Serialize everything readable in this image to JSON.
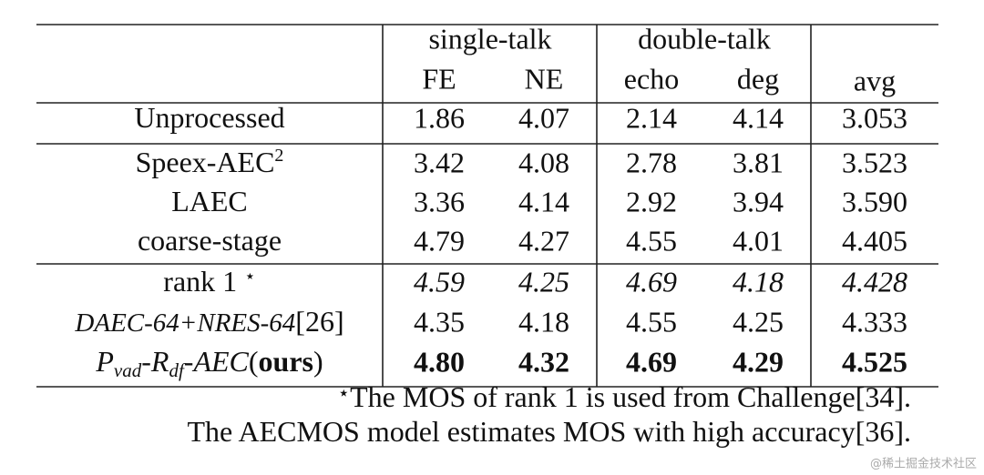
{
  "table": {
    "group_headers": [
      "single-talk",
      "double-talk"
    ],
    "columns": [
      "FE",
      "NE",
      "echo",
      "deg",
      "avg"
    ],
    "rows": [
      {
        "label": [
          "Unprocessed"
        ],
        "values": [
          "1.86",
          "4.07",
          "2.14",
          "4.14",
          "3.053"
        ]
      },
      {
        "label": [
          "Speex-AEC",
          "2"
        ],
        "values": [
          "3.42",
          "4.08",
          "2.78",
          "3.81",
          "3.523"
        ]
      },
      {
        "label": [
          "LAEC"
        ],
        "values": [
          "3.36",
          "4.14",
          "2.92",
          "3.94",
          "3.590"
        ]
      },
      {
        "label": [
          "coarse-stage"
        ],
        "values": [
          "4.79",
          "4.27",
          "4.55",
          "4.01",
          "4.405"
        ]
      },
      {
        "label": [
          "rank 1",
          "⋆"
        ],
        "values": [
          "4.59",
          "4.25",
          "4.69",
          "4.18",
          "4.428"
        ]
      },
      {
        "label": [
          "DAEC-64+NRES-64",
          "[26]"
        ],
        "values": [
          "4.35",
          "4.18",
          "4.55",
          "4.25",
          "4.333"
        ]
      },
      {
        "label": [
          "P",
          "vad",
          "-R",
          "df",
          "-AEC",
          "(",
          "ours",
          ")"
        ],
        "values": [
          "4.80",
          "4.32",
          "4.69",
          "4.29",
          "4.525"
        ]
      }
    ]
  },
  "footnotes": [
    [
      "⋆",
      "The MOS of rank 1 is used from Challenge[34]."
    ],
    [
      "The AECMOS model estimates MOS with high accuracy[36]."
    ]
  ],
  "watermark": "@稀土掘金技术社区"
}
